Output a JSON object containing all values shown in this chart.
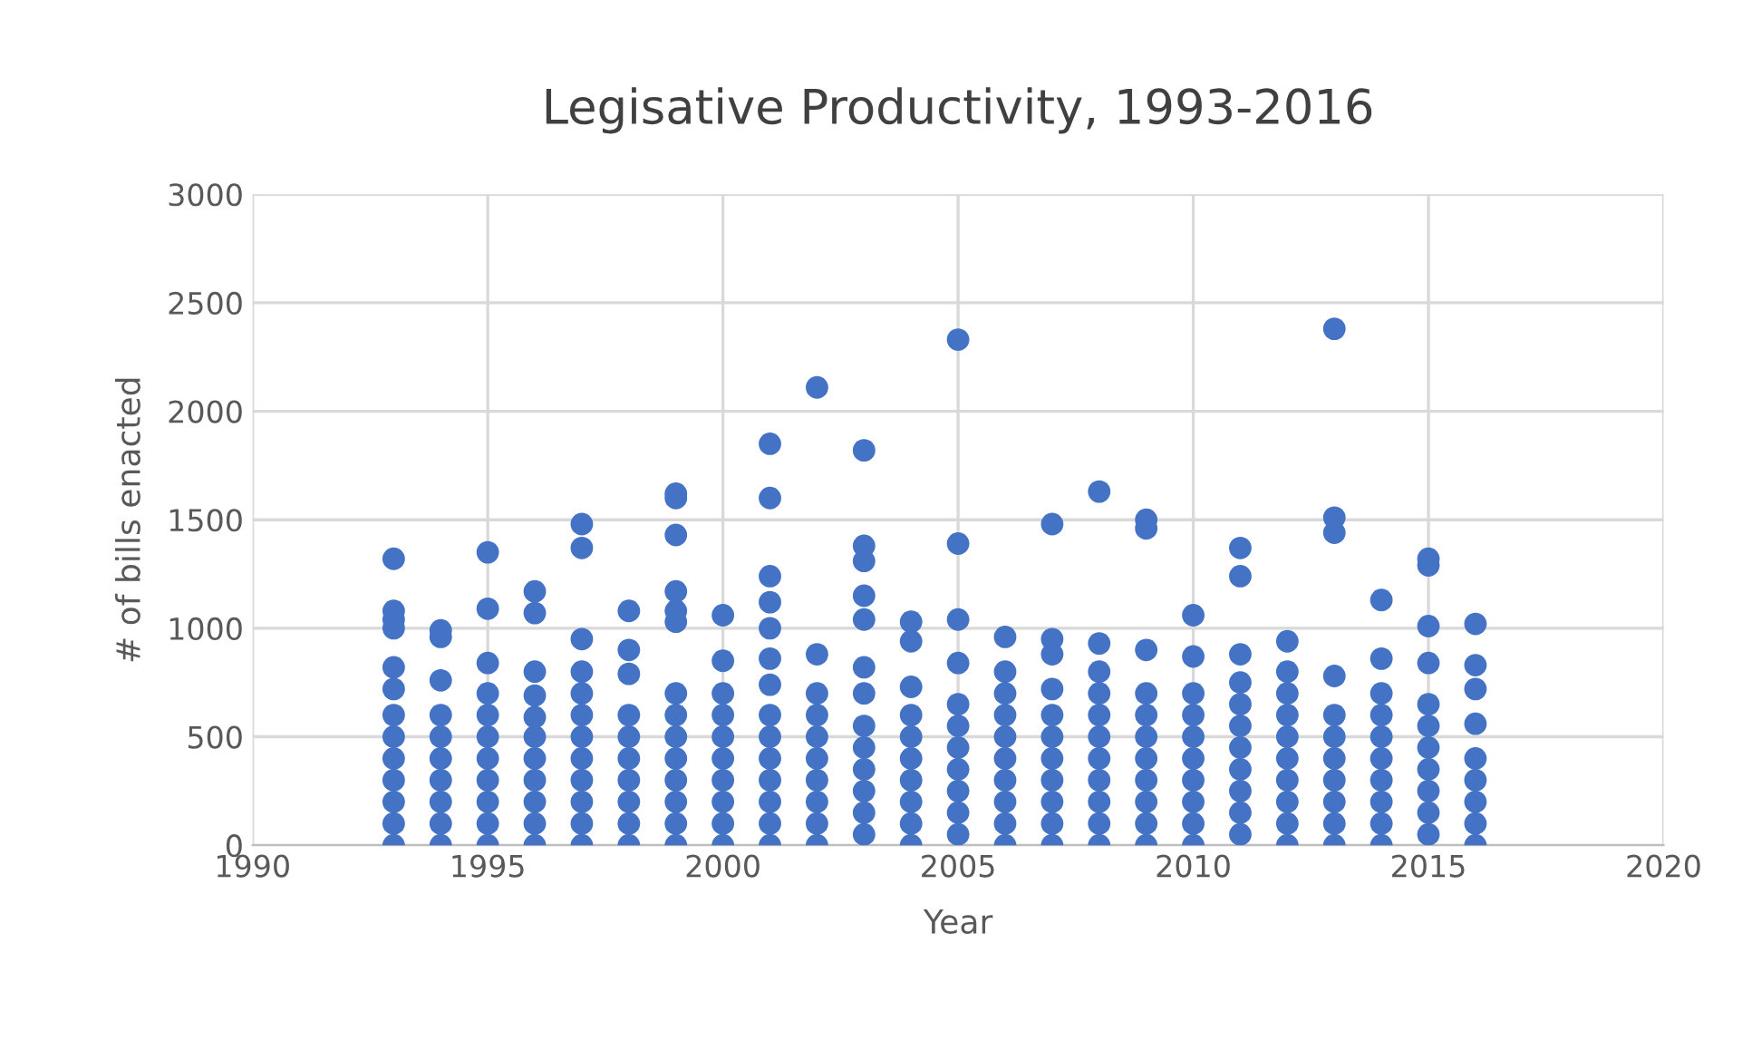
{
  "chart_data": {
    "type": "scatter",
    "title": "Legisative Productivity, 1993-2016",
    "xlabel": "Year",
    "ylabel": "# of bills enacted",
    "xlim": [
      1990,
      2020
    ],
    "xticks": [
      1990,
      1995,
      2000,
      2005,
      2010,
      2015,
      2020
    ],
    "ylim": [
      0,
      3000
    ],
    "yticks": [
      0,
      500,
      1000,
      1500,
      2000,
      2500,
      3000
    ],
    "grid": true,
    "marker": "circle",
    "legend": false,
    "series": [
      {
        "color": "#4472c4",
        "x": [
          1993,
          1993,
          1993,
          1993,
          1993,
          1993,
          1993,
          1993,
          1993,
          1993,
          1993,
          1993,
          1993,
          1994,
          1994,
          1994,
          1994,
          1994,
          1994,
          1994,
          1994,
          1994,
          1994,
          1995,
          1995,
          1995,
          1995,
          1995,
          1995,
          1995,
          1995,
          1995,
          1995,
          1995,
          1996,
          1996,
          1996,
          1996,
          1996,
          1996,
          1996,
          1996,
          1996,
          1996,
          1996,
          1997,
          1997,
          1997,
          1997,
          1997,
          1997,
          1997,
          1997,
          1997,
          1997,
          1997,
          1997,
          1998,
          1998,
          1998,
          1998,
          1998,
          1998,
          1998,
          1998,
          1998,
          1998,
          1999,
          1999,
          1999,
          1999,
          1999,
          1999,
          1999,
          1999,
          1999,
          1999,
          1999,
          1999,
          1999,
          1999,
          2000,
          2000,
          2000,
          2000,
          2000,
          2000,
          2000,
          2000,
          2000,
          2000,
          2001,
          2001,
          2001,
          2001,
          2001,
          2001,
          2001,
          2001,
          2001,
          2001,
          2001,
          2001,
          2001,
          2001,
          2002,
          2002,
          2002,
          2002,
          2002,
          2002,
          2002,
          2002,
          2002,
          2002,
          2003,
          2003,
          2003,
          2003,
          2003,
          2003,
          2003,
          2003,
          2003,
          2003,
          2003,
          2003,
          2003,
          2004,
          2004,
          2004,
          2004,
          2004,
          2004,
          2004,
          2004,
          2004,
          2004,
          2005,
          2005,
          2005,
          2005,
          2005,
          2005,
          2005,
          2005,
          2005,
          2005,
          2005,
          2006,
          2006,
          2006,
          2006,
          2006,
          2006,
          2006,
          2006,
          2006,
          2006,
          2007,
          2007,
          2007,
          2007,
          2007,
          2007,
          2007,
          2007,
          2007,
          2007,
          2007,
          2008,
          2008,
          2008,
          2008,
          2008,
          2008,
          2008,
          2008,
          2008,
          2008,
          2008,
          2009,
          2009,
          2009,
          2009,
          2009,
          2009,
          2009,
          2009,
          2009,
          2009,
          2009,
          2010,
          2010,
          2010,
          2010,
          2010,
          2010,
          2010,
          2010,
          2010,
          2010,
          2011,
          2011,
          2011,
          2011,
          2011,
          2011,
          2011,
          2011,
          2011,
          2011,
          2011,
          2012,
          2012,
          2012,
          2012,
          2012,
          2012,
          2012,
          2012,
          2012,
          2012,
          2013,
          2013,
          2013,
          2013,
          2013,
          2013,
          2013,
          2013,
          2013,
          2013,
          2013,
          2014,
          2014,
          2014,
          2014,
          2014,
          2014,
          2014,
          2014,
          2014,
          2014,
          2015,
          2015,
          2015,
          2015,
          2015,
          2015,
          2015,
          2015,
          2015,
          2015,
          2015,
          2016,
          2016,
          2016,
          2016,
          2016,
          2016,
          2016,
          2016,
          2016
        ],
        "values": [
          0,
          100,
          200,
          300,
          400,
          500,
          600,
          720,
          820,
          1000,
          1040,
          1080,
          1320,
          0,
          100,
          200,
          300,
          400,
          500,
          600,
          760,
          960,
          990,
          0,
          100,
          200,
          300,
          400,
          500,
          600,
          700,
          840,
          1090,
          1350,
          0,
          100,
          200,
          300,
          400,
          500,
          590,
          690,
          800,
          1070,
          1170,
          0,
          100,
          200,
          300,
          400,
          500,
          600,
          700,
          800,
          950,
          1370,
          1480,
          0,
          100,
          200,
          300,
          400,
          500,
          600,
          790,
          900,
          1080,
          0,
          100,
          200,
          300,
          400,
          500,
          600,
          700,
          1030,
          1080,
          1170,
          1430,
          1600,
          1620,
          0,
          100,
          200,
          300,
          400,
          500,
          600,
          700,
          850,
          1060,
          0,
          100,
          200,
          300,
          400,
          500,
          600,
          740,
          860,
          1000,
          1120,
          1240,
          1600,
          1850,
          0,
          100,
          200,
          300,
          400,
          500,
          600,
          700,
          880,
          2110,
          50,
          150,
          250,
          350,
          450,
          550,
          700,
          820,
          1040,
          1150,
          1310,
          1380,
          1820,
          0,
          100,
          200,
          300,
          400,
          500,
          600,
          730,
          940,
          1030,
          50,
          150,
          250,
          350,
          450,
          550,
          650,
          840,
          1040,
          1390,
          2330,
          0,
          100,
          200,
          300,
          400,
          500,
          600,
          700,
          800,
          960,
          0,
          100,
          200,
          300,
          400,
          500,
          600,
          720,
          880,
          950,
          1480,
          0,
          100,
          200,
          300,
          400,
          500,
          600,
          700,
          800,
          930,
          1630,
          0,
          100,
          200,
          300,
          400,
          500,
          600,
          700,
          900,
          1460,
          1500,
          0,
          100,
          200,
          300,
          400,
          500,
          600,
          700,
          870,
          1060,
          50,
          150,
          250,
          350,
          450,
          550,
          650,
          750,
          880,
          1240,
          1370,
          0,
          100,
          200,
          300,
          400,
          500,
          600,
          700,
          800,
          940,
          0,
          100,
          200,
          300,
          400,
          500,
          600,
          780,
          1440,
          1510,
          2380,
          0,
          100,
          200,
          300,
          400,
          500,
          600,
          700,
          860,
          1130,
          50,
          150,
          250,
          350,
          450,
          550,
          650,
          840,
          1010,
          1290,
          1320,
          0,
          100,
          200,
          300,
          400,
          560,
          720,
          830,
          1020
        ]
      }
    ]
  }
}
